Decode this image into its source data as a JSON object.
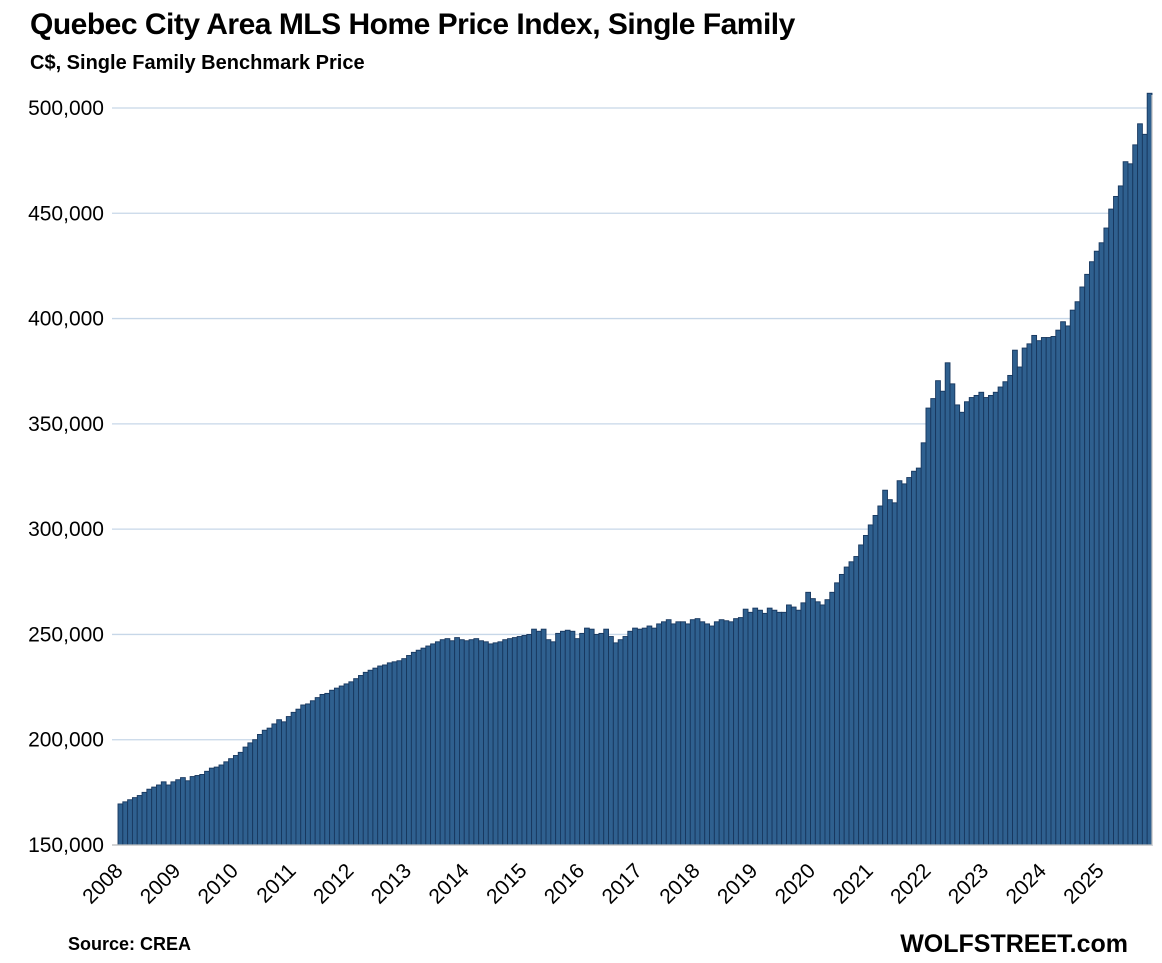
{
  "header": {
    "title": "Quebec City Area MLS Home Price Index, Single Family",
    "subtitle": "C$, Single Family Benchmark Price"
  },
  "footer": {
    "source": "Source: CREA",
    "brand": "WOLFSTREET.com"
  },
  "chart_data": {
    "type": "bar",
    "title": "Quebec City Area MLS Home Price Index, Single Family",
    "subtitle": "C$, Single Family Benchmark Price",
    "xlabel": "",
    "ylabel": "C$, Single Family Benchmark Price",
    "frequency": "monthly",
    "start": "2008-01",
    "end": "2025-11",
    "x_tick_labels": [
      "2008",
      "2009",
      "2010",
      "2011",
      "2012",
      "2013",
      "2014",
      "2015",
      "2016",
      "2017",
      "2018",
      "2019",
      "2020",
      "2021",
      "2022",
      "2023",
      "2024",
      "2025"
    ],
    "ylim": [
      150000,
      500000
    ],
    "yticks": [
      150000,
      200000,
      250000,
      300000,
      350000,
      400000,
      450000,
      500000
    ],
    "grid": "horizontal",
    "legend": "none",
    "bar_color": "#2F608F",
    "bar_border_color": "#17375E",
    "gridline_color": "#C7D7E8",
    "axis_line_color": "#BFBFBF",
    "values": [
      169500,
      170500,
      171500,
      172500,
      173500,
      175000,
      176500,
      177500,
      178500,
      180000,
      178500,
      180000,
      181000,
      182000,
      180500,
      182500,
      183000,
      183500,
      185000,
      186500,
      187000,
      188000,
      189500,
      191000,
      192500,
      194000,
      196500,
      198500,
      200000,
      202500,
      204500,
      205500,
      207500,
      209500,
      208500,
      211000,
      213000,
      214500,
      216500,
      217000,
      218500,
      220000,
      221500,
      222000,
      223500,
      224500,
      225500,
      226500,
      227500,
      229000,
      230500,
      232000,
      233000,
      234000,
      235000,
      235500,
      236500,
      237000,
      237500,
      238500,
      240000,
      241500,
      242500,
      243500,
      244500,
      245500,
      246500,
      247500,
      248000,
      247000,
      248500,
      247500,
      247000,
      247500,
      248000,
      247000,
      246500,
      245500,
      246000,
      246500,
      247500,
      248000,
      248500,
      249000,
      249500,
      250000,
      252500,
      251500,
      252500,
      247500,
      246500,
      250500,
      251500,
      252000,
      251500,
      248000,
      250500,
      253000,
      252500,
      250000,
      250500,
      252500,
      249000,
      246000,
      247500,
      249000,
      251500,
      253000,
      252500,
      253000,
      254000,
      253000,
      255000,
      256000,
      257000,
      255000,
      256000,
      256000,
      255000,
      257000,
      257500,
      256000,
      255000,
      254000,
      256000,
      257000,
      256500,
      256000,
      257500,
      258000,
      262000,
      260500,
      262500,
      261500,
      260000,
      262500,
      261500,
      260500,
      260500,
      264000,
      263000,
      261500,
      265000,
      270000,
      267000,
      265500,
      264000,
      266500,
      270000,
      274500,
      278500,
      282000,
      284500,
      287000,
      292500,
      297000,
      302000,
      306500,
      311000,
      318500,
      314000,
      312500,
      323000,
      321500,
      324500,
      327500,
      329000,
      341000,
      357500,
      362000,
      370500,
      365500,
      379000,
      369000,
      359000,
      355500,
      360500,
      362500,
      363500,
      365000,
      362500,
      363500,
      365000,
      367500,
      370000,
      373000,
      385000,
      377000,
      386000,
      388000,
      392000,
      389500,
      391000,
      391000,
      391500,
      394500,
      398500,
      396500,
      404000,
      408000,
      415000,
      421000,
      427000,
      432000,
      436000,
      443000,
      452000,
      458000,
      463000,
      474500,
      473500,
      482500,
      492500,
      487500,
      507000
    ]
  }
}
